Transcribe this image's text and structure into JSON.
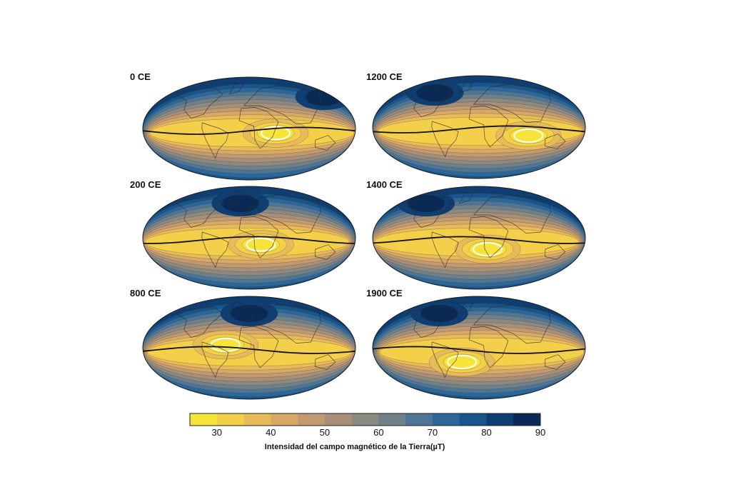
{
  "chart_data": {
    "type": "heatmap",
    "panels": [
      {
        "title": "0 CE",
        "low_center": [
          45,
          -8
        ],
        "equator_bias": 0,
        "polar_high": [
          160,
          55
        ]
      },
      {
        "title": "1200 CE",
        "low_center": [
          85,
          -15
        ],
        "equator_bias": 0,
        "polar_high": [
          -100,
          60
        ]
      },
      {
        "title": "200 CE",
        "low_center": [
          20,
          -12
        ],
        "equator_bias": 0,
        "polar_high": [
          -20,
          60
        ]
      },
      {
        "title": "1400 CE",
        "low_center": [
          15,
          -20
        ],
        "equator_bias": 0,
        "polar_high": [
          -120,
          60
        ]
      },
      {
        "title": "800 CE",
        "low_center": [
          -40,
          5
        ],
        "equator_bias": 0,
        "polar_high": [
          0,
          60
        ]
      },
      {
        "title": "1900 CE",
        "low_center": [
          -30,
          -25
        ],
        "equator_bias": 0,
        "polar_high": [
          -90,
          60
        ]
      }
    ],
    "colorbar": {
      "label": "Intensidad del campo magnético de la Tierra(µT)",
      "ticks": [
        "30",
        "40",
        "50",
        "60",
        "70",
        "80",
        "90"
      ],
      "range": [
        25,
        90
      ],
      "colors": [
        "#f7e43a",
        "#f3cf4a",
        "#e8bb5a",
        "#d8a866",
        "#c19a72",
        "#a89078",
        "#8b8980",
        "#6f8088",
        "#4f7596",
        "#2c6798",
        "#17558c",
        "#0e3e72",
        "#0a2a55"
      ]
    }
  }
}
